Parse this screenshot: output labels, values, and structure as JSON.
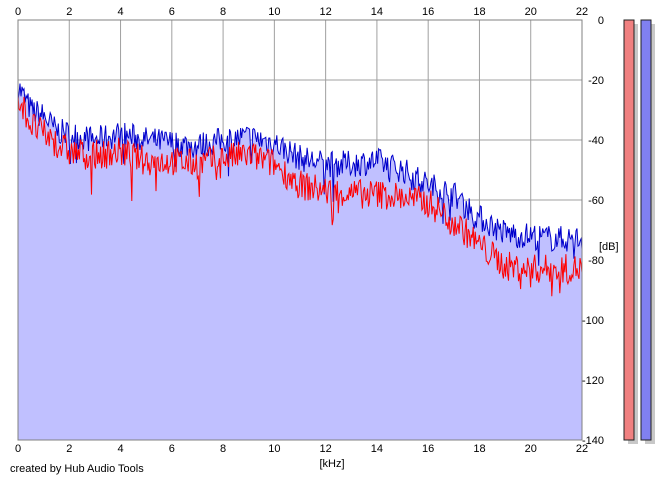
{
  "chart_data": {
    "type": "area",
    "xlabel": "[kHz]",
    "ylabel": "[dB]",
    "xlim": [
      0,
      22
    ],
    "ylim": [
      -140,
      0
    ],
    "x_ticks": [
      "0",
      "2",
      "4",
      "6",
      "8",
      "10",
      "12",
      "14",
      "16",
      "18",
      "20",
      "22"
    ],
    "y_ticks": [
      "0",
      "-20",
      "-40",
      "-60",
      "-80",
      "-100",
      "-120",
      "-140"
    ],
    "grid": true,
    "x": [
      0,
      0.5,
      1,
      1.5,
      2,
      3,
      4,
      5,
      6,
      7,
      8,
      9,
      10,
      11,
      12,
      13,
      14,
      15,
      16,
      17,
      18,
      19,
      20,
      21,
      22
    ],
    "series": [
      {
        "color": "#0000cc",
        "fill": "#c0c0ff",
        "values": [
          -22,
          -30,
          -32,
          -37,
          -38,
          -40,
          -38,
          -40,
          -41,
          -42,
          -40,
          -39,
          -41,
          -46,
          -48,
          -48,
          -47,
          -50,
          -55,
          -58,
          -66,
          -71,
          -72,
          -73,
          -73
        ]
      },
      {
        "color": "#ff0000",
        "values": [
          -25,
          -35,
          -38,
          -41,
          -44,
          -45,
          -44,
          -47,
          -47,
          -48,
          -46,
          -45,
          -48,
          -55,
          -57,
          -58,
          -58,
          -59,
          -61,
          -67,
          -75,
          -82,
          -83,
          -83,
          -83
        ]
      }
    ],
    "level_meters": [
      {
        "color": "#f08080"
      },
      {
        "color": "#8080f0"
      }
    ]
  },
  "footer": {
    "credit": "created by Hub Audio Tools"
  }
}
